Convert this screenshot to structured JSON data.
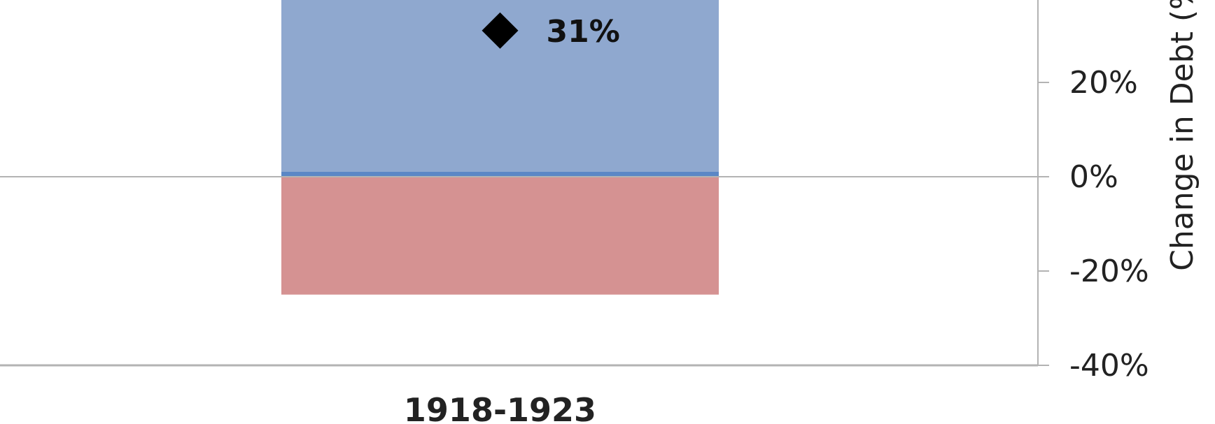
{
  "chart_data": {
    "type": "bar",
    "categories": [
      "1918-1923"
    ],
    "series": [
      {
        "values": [
          50
        ],
        "color": "#8fa8cf"
      },
      {
        "values": [
          -25
        ],
        "color": "#d59292"
      }
    ],
    "markers": [
      {
        "category": "1918-1923",
        "value": 31,
        "label": "31%",
        "shape": "diamond",
        "color": "#000000"
      }
    ],
    "y_axis": {
      "position": "right",
      "label": "Change in Debt (%",
      "ticks": [
        20,
        0,
        -20,
        -40
      ],
      "tick_labels": [
        "20%",
        "0%",
        "-20%",
        "-40%"
      ],
      "visible_range": [
        -40,
        37
      ]
    },
    "colors": {
      "positive_band_line": "#5b87c5",
      "zero_line": "#b3b3b3",
      "axis": "#b3b3b3"
    },
    "grid": false
  }
}
